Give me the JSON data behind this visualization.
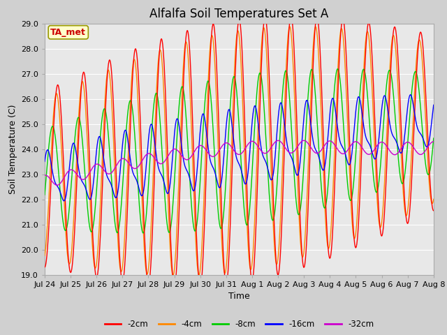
{
  "title": "Alfalfa Soil Temperatures Set A",
  "xlabel": "Time",
  "ylabel": "Soil Temperature (C)",
  "ylim": [
    19.0,
    29.0
  ],
  "yticks": [
    19.0,
    20.0,
    21.0,
    22.0,
    23.0,
    24.0,
    25.0,
    26.0,
    27.0,
    28.0,
    29.0
  ],
  "x_labels": [
    "Jul 24",
    "Jul 25",
    "Jul 26",
    "Jul 27",
    "Jul 28",
    "Jul 29",
    "Jul 30",
    "Jul 31",
    "Aug 1",
    "Aug 2",
    "Aug 3",
    "Aug 4",
    "Aug 5",
    "Aug 6",
    "Aug 7",
    "Aug 8"
  ],
  "annotation_text": "TA_met",
  "annotation_color": "#cc0000",
  "annotation_bg": "#ffffcc",
  "series_colors": {
    "-2cm": "#ff0000",
    "-4cm": "#ff8800",
    "-8cm": "#00cc00",
    "-16cm": "#0000ff",
    "-32cm": "#cc00cc"
  },
  "legend_labels": [
    "-2cm",
    "-4cm",
    "-8cm",
    "-16cm",
    "-32cm"
  ],
  "fig_facecolor": "#d0d0d0",
  "plot_facecolor": "#e8e8e8",
  "grid_color": "#ffffff",
  "title_fontsize": 12,
  "axis_label_fontsize": 9,
  "tick_fontsize": 8
}
